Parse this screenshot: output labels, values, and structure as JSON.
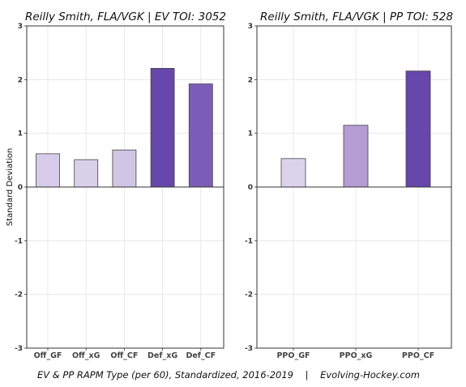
{
  "footer": "EV & PP RAPM Type (per 60), Standardized, 2016-2019    |    Evolving-Hockey.com",
  "chart_data": [
    {
      "type": "bar",
      "title": "Reilly Smith, FLA/VGK  |  EV TOI: 3052",
      "ylabel": "Standard Deviation",
      "xlabel": "",
      "ylim": [
        -3,
        3
      ],
      "yticks": [
        -3,
        -2,
        -1,
        0,
        1,
        2,
        3
      ],
      "grid": true,
      "categories": [
        "Off_GF",
        "Off_xG",
        "Off_CF",
        "Def_xG",
        "Def_CF"
      ],
      "values": [
        0.62,
        0.51,
        0.69,
        2.21,
        1.92
      ],
      "colors": [
        "#d6cbe8",
        "#d9d0ea",
        "#d1c5e5",
        "#6647ab",
        "#7b5cb7"
      ]
    },
    {
      "type": "bar",
      "title": "Reilly Smith, FLA/VGK  |  PP TOI: 528",
      "ylabel": "",
      "xlabel": "",
      "ylim": [
        -3,
        3
      ],
      "yticks": [
        -3,
        -2,
        -1,
        0,
        1,
        2,
        3
      ],
      "grid": true,
      "categories": [
        "PPO_GF",
        "PPO_xG",
        "PPO_CF"
      ],
      "values": [
        0.53,
        1.15,
        2.16
      ],
      "colors": [
        "#dbd3ec",
        "#b39dd3",
        "#6647ab"
      ]
    }
  ]
}
